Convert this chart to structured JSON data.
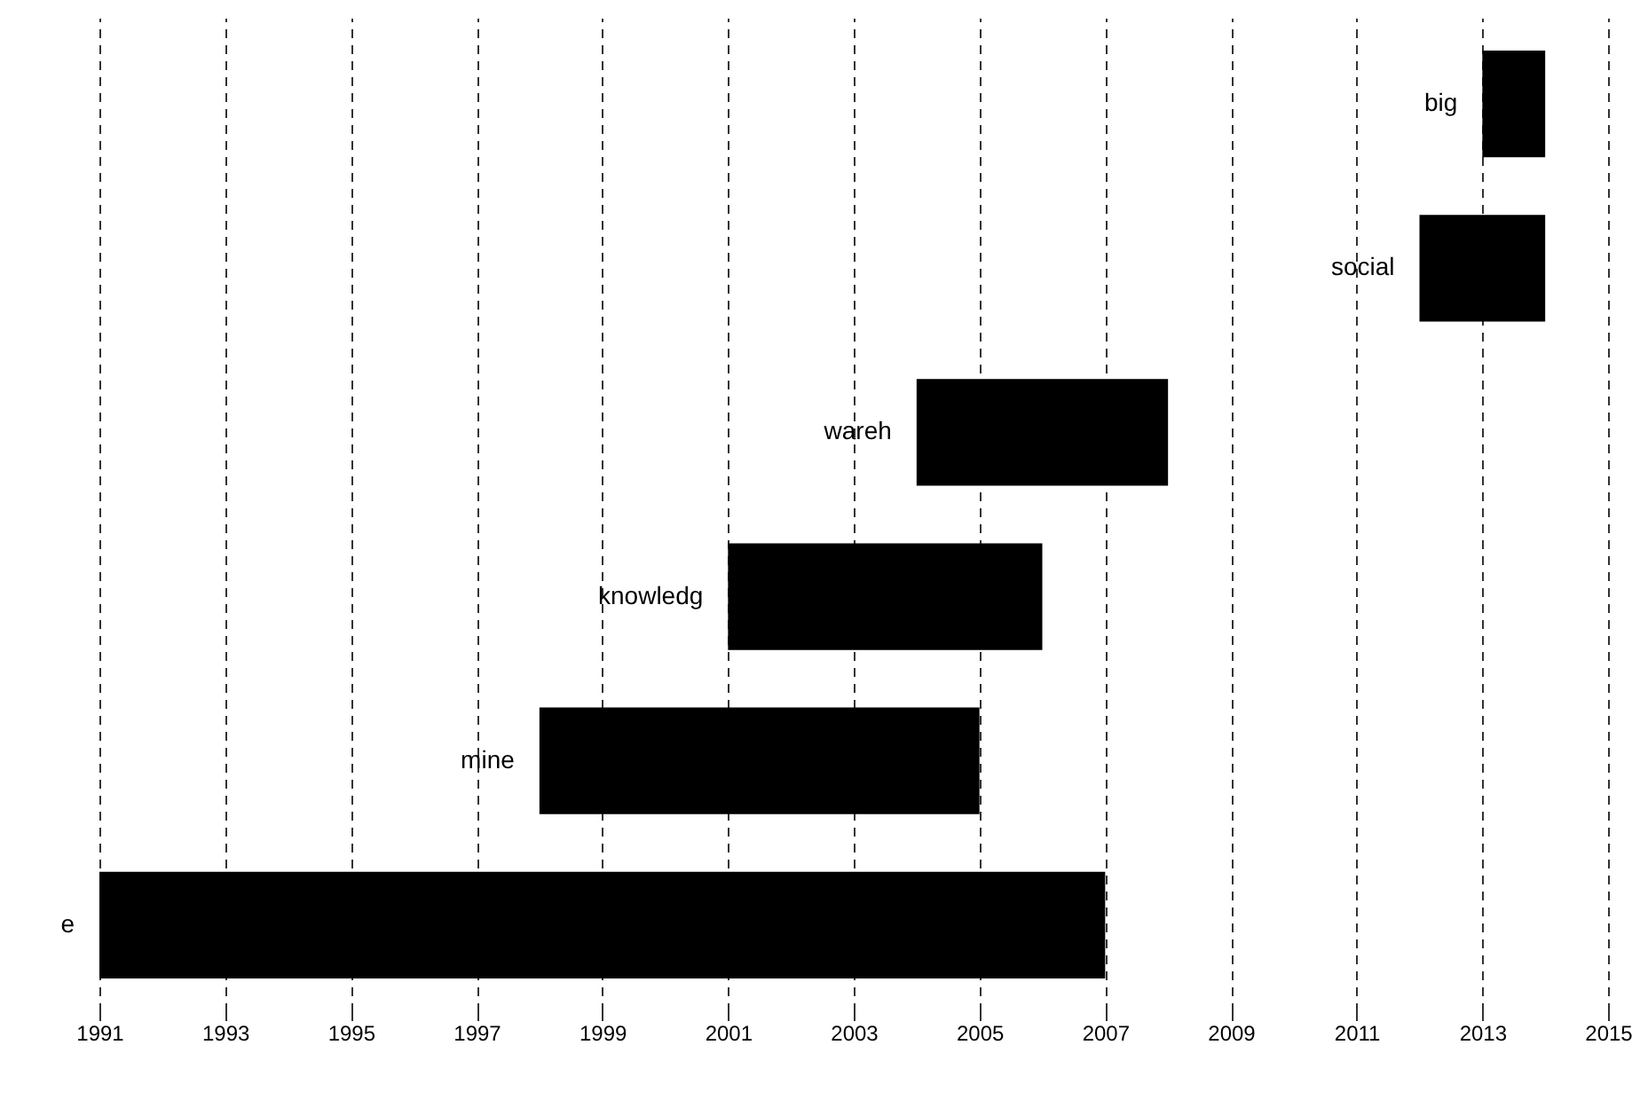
{
  "chart_data": {
    "type": "bar",
    "orientation": "horizontal",
    "categories": [
      "big",
      "social",
      "wareh",
      "knowledg",
      "mine",
      "e"
    ],
    "base": [
      2013,
      2012,
      2004,
      2001,
      1998,
      1991
    ],
    "values": [
      1,
      2,
      4,
      5,
      7,
      16
    ],
    "color": "#000000",
    "xlim": [
      1991,
      2015
    ],
    "xticks": [
      1991,
      1993,
      1995,
      1997,
      1999,
      2001,
      2003,
      2005,
      2007,
      2009,
      2011,
      2013,
      2015
    ],
    "grid": "x",
    "tick_labels": "x"
  }
}
